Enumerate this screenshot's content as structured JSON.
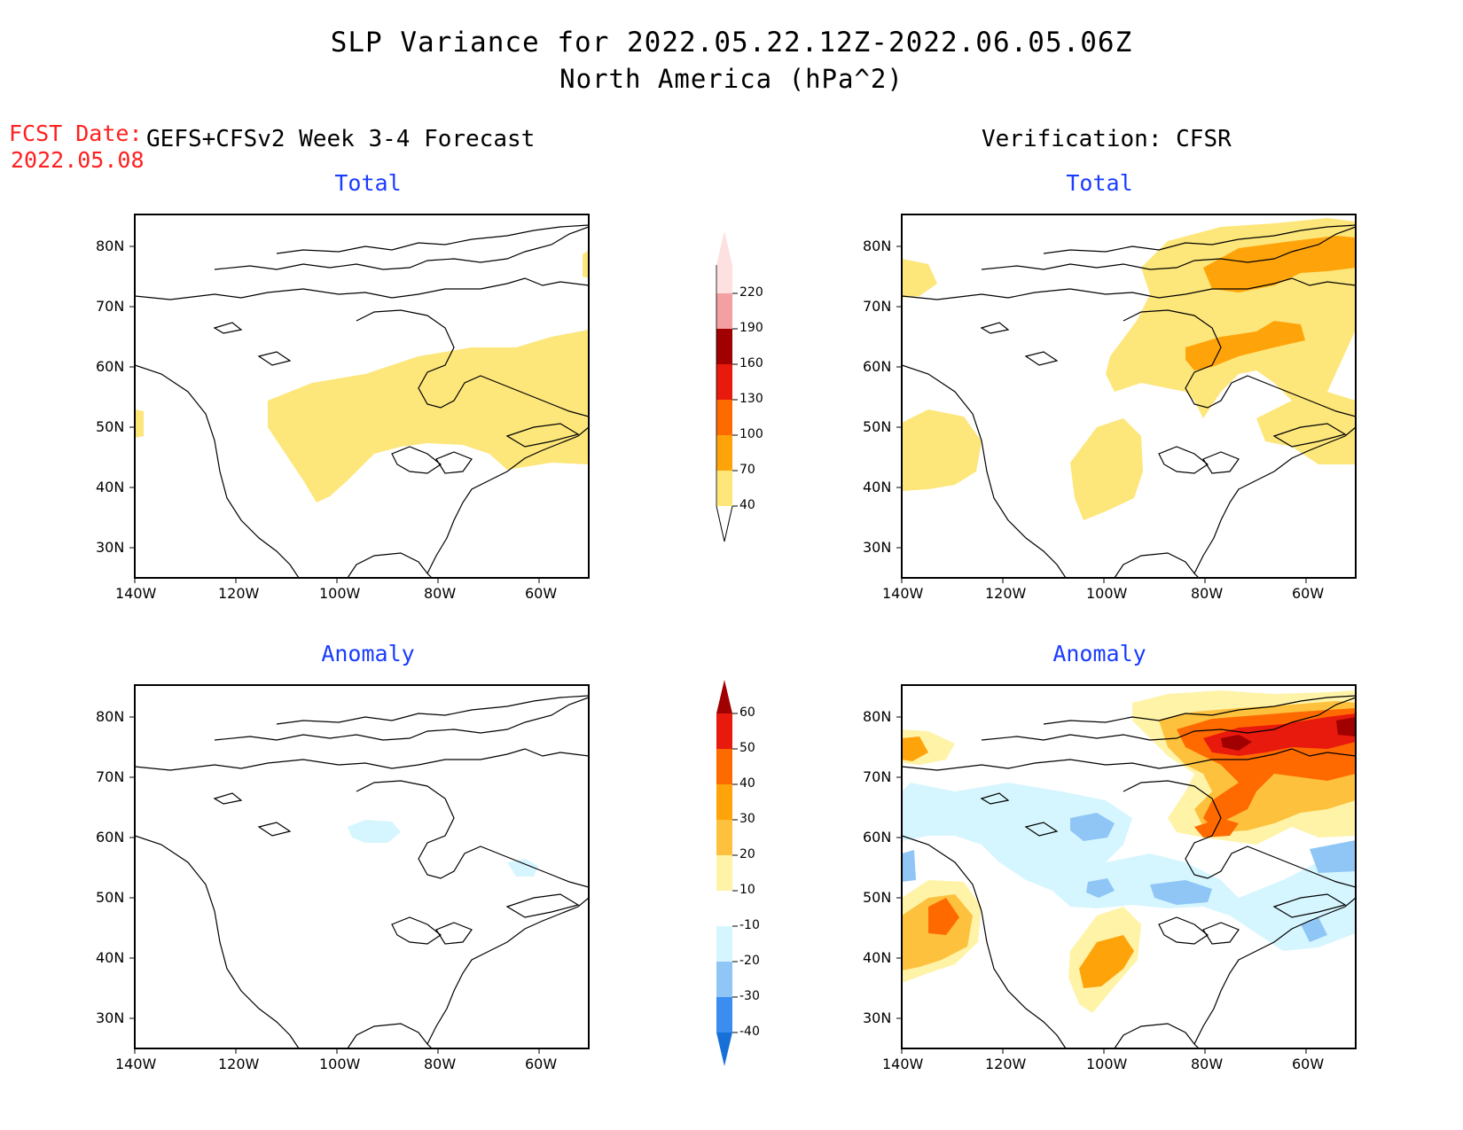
{
  "title": {
    "line1": "SLP Variance for 2022.05.22.12Z-2022.06.05.06Z",
    "line2": "North America (hPa^2)"
  },
  "fcst": {
    "label": "FCST Date:",
    "date": "2022.05.08"
  },
  "columns": {
    "left": "GEFS+CFSv2 Week 3-4 Forecast",
    "right": "Verification: CFSR"
  },
  "panels": {
    "total_label": "Total",
    "anomaly_label": "Anomaly"
  },
  "axes": {
    "lat_ticks": [
      "80N",
      "70N",
      "60N",
      "50N",
      "40N",
      "30N"
    ],
    "lon_ticks": [
      "140W",
      "120W",
      "100W",
      "80W",
      "60W"
    ]
  },
  "colorbar_total": {
    "levels": [
      "40",
      "70",
      "100",
      "130",
      "160",
      "190",
      "220"
    ],
    "colors": [
      "#fde67a",
      "#ffa30a",
      "#ff6a00",
      "#e8190d",
      "#a00000",
      "#f3a0a3",
      "#fde1e1"
    ]
  },
  "colorbar_anomaly": {
    "levels": [
      "-40",
      "-30",
      "-20",
      "-10",
      "10",
      "20",
      "30",
      "40",
      "50",
      "60"
    ],
    "colors": [
      "#1670d8",
      "#3b8ef0",
      "#8fc6f5",
      "#d6f6ff",
      "#ffffff",
      "#fff3a8",
      "#fdc13e",
      "#ffa30a",
      "#ff6a00",
      "#e8190d",
      "#a00000"
    ]
  }
}
